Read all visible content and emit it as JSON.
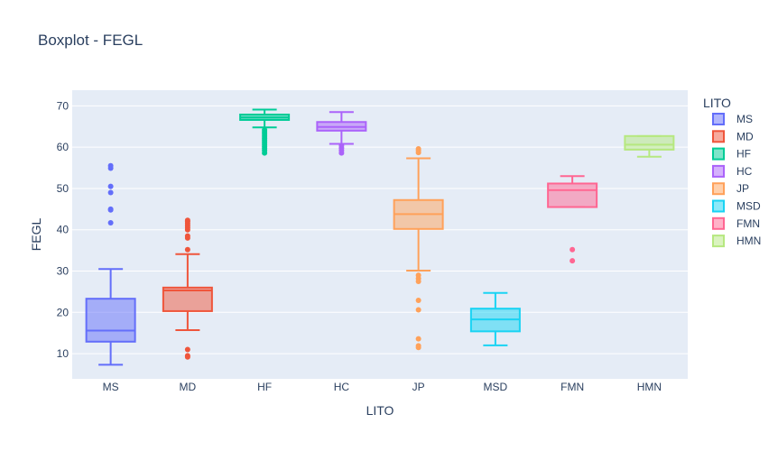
{
  "chart_data": {
    "type": "box",
    "title": "Boxplot - FEGL",
    "xlabel": "LITO",
    "ylabel": "FEGL",
    "ylim": [
      3.9,
      73.8
    ],
    "yticks": [
      10,
      20,
      30,
      40,
      50,
      60,
      70
    ],
    "grid": true,
    "legend_title": "LITO",
    "legend_position": "right",
    "series": [
      {
        "name": "MS",
        "color": "#636efa",
        "q1": 12.9,
        "median": 15.6,
        "q3": 23.3,
        "lower_whisker": 7.3,
        "upper_whisker": 30.5,
        "outliers": [
          41.7,
          44.8,
          45.0,
          49.0,
          50.5,
          54.9,
          55.5
        ]
      },
      {
        "name": "MD",
        "color": "#ef553b",
        "q1": 20.3,
        "median": 25.3,
        "q3": 26.0,
        "lower_whisker": 15.7,
        "upper_whisker": 34.1,
        "outliers": [
          9.2,
          9.5,
          11.0,
          35.2,
          38.0,
          38.5,
          40.0,
          40.5,
          41.0,
          41.5,
          42.0,
          42.3
        ]
      },
      {
        "name": "HF",
        "color": "#00cc96",
        "q1": 66.6,
        "median": 67.2,
        "q3": 67.9,
        "lower_whisker": 64.8,
        "upper_whisker": 69.1,
        "outliers": [
          58.6,
          59.2,
          59.7,
          60.2,
          60.7,
          61.2,
          61.7,
          62.2,
          62.7,
          63.2,
          63.7,
          64.2
        ]
      },
      {
        "name": "HC",
        "color": "#ab63fa",
        "q1": 64.0,
        "median": 64.9,
        "q3": 66.1,
        "lower_whisker": 60.8,
        "upper_whisker": 68.5,
        "outliers": [
          58.6,
          59.2,
          59.8,
          60.4
        ]
      },
      {
        "name": "JP",
        "color": "#ffa15a",
        "q1": 40.2,
        "median": 43.8,
        "q3": 47.2,
        "lower_whisker": 30.1,
        "upper_whisker": 57.3,
        "outliers": [
          11.5,
          11.9,
          13.6,
          20.6,
          22.9,
          27.5,
          28.2,
          29.0,
          58.7,
          59.2,
          59.6
        ]
      },
      {
        "name": "MSD",
        "color": "#19d3f3",
        "q1": 15.4,
        "median": 18.3,
        "q3": 20.9,
        "lower_whisker": 12.0,
        "upper_whisker": 24.7,
        "outliers": []
      },
      {
        "name": "FMN",
        "color": "#ff6692",
        "q1": 45.5,
        "median": 49.6,
        "q3": 51.2,
        "lower_whisker": 45.5,
        "upper_whisker": 53.0,
        "outliers": [
          32.5,
          35.2
        ]
      },
      {
        "name": "HMN",
        "color": "#b6e880",
        "q1": 59.4,
        "median": 60.6,
        "q3": 62.7,
        "lower_whisker": 57.7,
        "upper_whisker": 62.7,
        "outliers": []
      }
    ]
  }
}
